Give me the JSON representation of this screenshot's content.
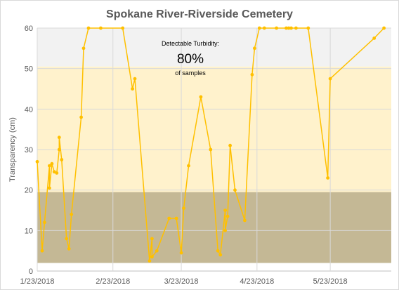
{
  "chart_data": {
    "type": "line",
    "title": "Spokane River-Riverside Cemetery",
    "ylabel": "Transparency (cm)",
    "xlabel": "",
    "ylim": [
      0,
      60
    ],
    "xlim": [
      "2018-01-23",
      "2018-06-17"
    ],
    "yticks": [
      0,
      10,
      20,
      30,
      40,
      50,
      60
    ],
    "xticks": [
      {
        "date": "2018-01-23",
        "label": "1/23/2018"
      },
      {
        "date": "2018-02-23",
        "label": "2/23/2018"
      },
      {
        "date": "2018-03-23",
        "label": "3/23/2018"
      },
      {
        "date": "2018-04-23",
        "label": "4/23/2018"
      },
      {
        "date": "2018-05-23",
        "label": "5/23/2018"
      }
    ],
    "grid": true,
    "line_color": "#ffc000",
    "bands": [
      {
        "from": 50.5,
        "to": 60,
        "color": "#f2f2f2"
      },
      {
        "from": 19.5,
        "to": 50.5,
        "color": "#fff2cc"
      },
      {
        "from": 2,
        "to": 19.5,
        "color": "#c4b895"
      }
    ],
    "annotation": {
      "label": "Detectable Turbidity:",
      "value": "80%",
      "sublabel": "of samples"
    },
    "points": [
      [
        "2018-01-23",
        27
      ],
      [
        "2018-01-25",
        5
      ],
      [
        "2018-01-26",
        12
      ],
      [
        "2018-01-28",
        26
      ],
      [
        "2018-01-28",
        20.5
      ],
      [
        "2018-01-29",
        26.5
      ],
      [
        "2018-01-30",
        24.5
      ],
      [
        "2018-01-31",
        24.2
      ],
      [
        "2018-02-01",
        30
      ],
      [
        "2018-02-01",
        33
      ],
      [
        "2018-02-02",
        27.5
      ],
      [
        "2018-02-04",
        8
      ],
      [
        "2018-02-05",
        5.5
      ],
      [
        "2018-02-06",
        14
      ],
      [
        "2018-02-10",
        38
      ],
      [
        "2018-02-11",
        55
      ],
      [
        "2018-02-13",
        60
      ],
      [
        "2018-02-18",
        60
      ],
      [
        "2018-02-27",
        60
      ],
      [
        "2018-03-03",
        45
      ],
      [
        "2018-03-04",
        47.5
      ],
      [
        "2018-03-10",
        2.5
      ],
      [
        "2018-03-11",
        8
      ],
      [
        "2018-03-11",
        3.5
      ],
      [
        "2018-03-13",
        5
      ],
      [
        "2018-03-18",
        13
      ],
      [
        "2018-03-21",
        13
      ],
      [
        "2018-03-23",
        4.5
      ],
      [
        "2018-03-24",
        15.5
      ],
      [
        "2018-03-26",
        26
      ],
      [
        "2018-03-31",
        43
      ],
      [
        "2018-04-04",
        30
      ],
      [
        "2018-04-07",
        5
      ],
      [
        "2018-04-08",
        4
      ],
      [
        "2018-04-10",
        15
      ],
      [
        "2018-04-10",
        10
      ],
      [
        "2018-04-11",
        13.5
      ],
      [
        "2018-04-12",
        31
      ],
      [
        "2018-04-14",
        20
      ],
      [
        "2018-04-18",
        12.5
      ],
      [
        "2018-04-21",
        48.5
      ],
      [
        "2018-04-22",
        55
      ],
      [
        "2018-04-24",
        60
      ],
      [
        "2018-04-26",
        60
      ],
      [
        "2018-05-01",
        60
      ],
      [
        "2018-05-05",
        60
      ],
      [
        "2018-05-06",
        60
      ],
      [
        "2018-05-07",
        60
      ],
      [
        "2018-05-09",
        60
      ],
      [
        "2018-05-14",
        60
      ],
      [
        "2018-05-22",
        23
      ],
      [
        "2018-05-23",
        47.5
      ],
      [
        "2018-06-10",
        57.5
      ],
      [
        "2018-06-14",
        60
      ]
    ]
  }
}
